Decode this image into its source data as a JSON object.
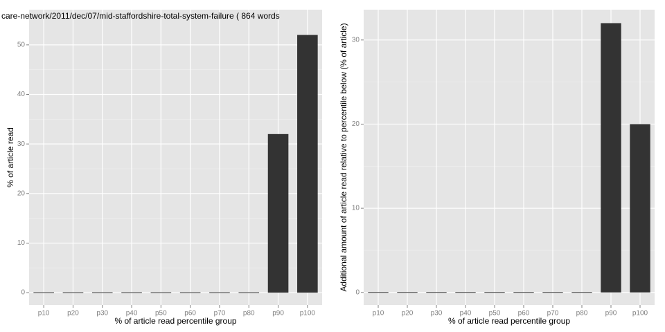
{
  "chart_data": [
    {
      "type": "bar",
      "title": "care-network/2011/dec/07/mid-staffordshire-total-system-failure ( 864 words",
      "x_label": "% of article read percentile group",
      "y_label": "% of article read",
      "categories": [
        "p10",
        "p20",
        "p30",
        "p40",
        "p50",
        "p60",
        "p70",
        "p80",
        "p90",
        "p100"
      ],
      "values": [
        0,
        0,
        0,
        0,
        0,
        0,
        0,
        0,
        32,
        52
      ],
      "color": "#333333",
      "ylim": [
        -2.5,
        57.1
      ],
      "yticks": [
        0,
        10,
        20,
        30,
        40,
        50
      ],
      "grid": true
    },
    {
      "type": "bar",
      "x_label": "% of article read percentile group",
      "y_label": "Additional amount of article read relative to percentile below (% of article)",
      "categories": [
        "p10",
        "p20",
        "p30",
        "p40",
        "p50",
        "p60",
        "p70",
        "p80",
        "p90",
        "p100"
      ],
      "values": [
        0,
        0,
        0,
        0,
        0,
        0,
        0,
        0,
        32,
        20
      ],
      "color": "#333333",
      "ylim": [
        -1.5,
        33.6
      ],
      "yticks": [
        0,
        10,
        20,
        30
      ],
      "grid": true
    }
  ]
}
